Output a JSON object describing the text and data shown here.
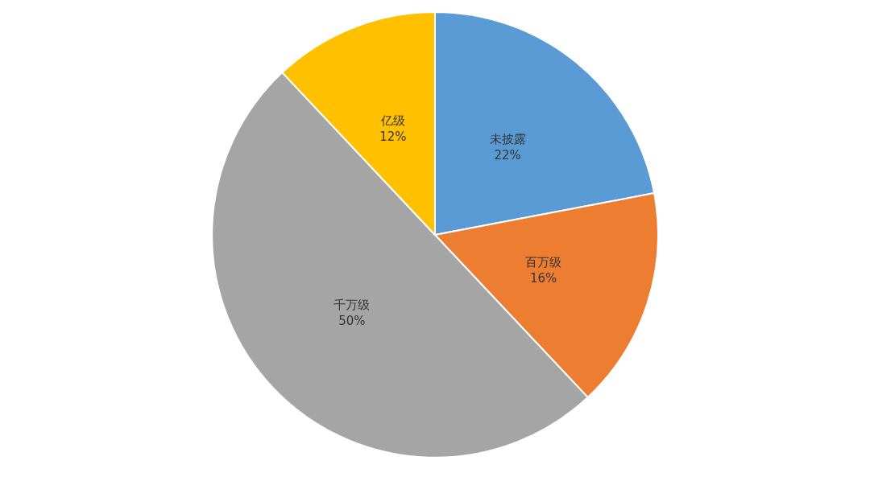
{
  "chart_data": {
    "type": "pie",
    "categories": [
      "未披露",
      "百万级",
      "千万级",
      "亿级"
    ],
    "values": [
      22,
      16,
      50,
      12
    ],
    "value_labels": [
      "22%",
      "16%",
      "50%",
      "12%"
    ],
    "colors": [
      "#5b9bd5",
      "#ed7d31",
      "#a5a5a5",
      "#ffc000"
    ],
    "legend": false
  }
}
